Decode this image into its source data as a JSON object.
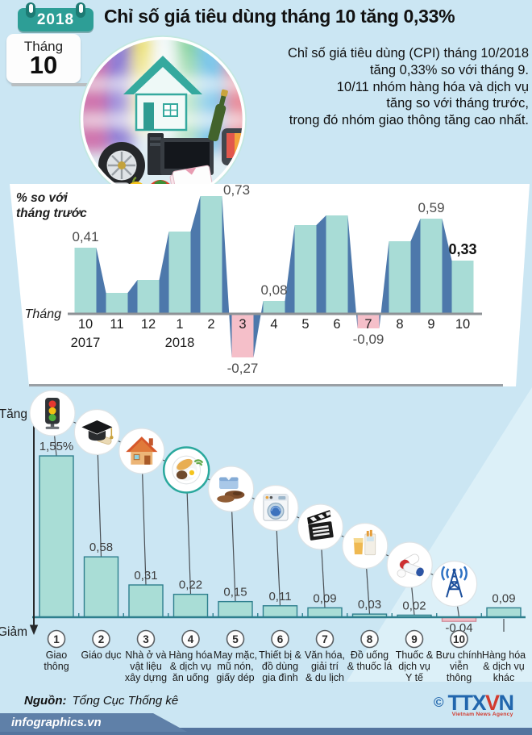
{
  "header": {
    "year_badge": "2018",
    "title": "Chỉ số giá tiêu dùng tháng 10 tăng 0,33%",
    "calendar": {
      "month_label": "Tháng",
      "month_number": "10"
    },
    "intro": "Chỉ số giá tiêu dùng (CPI) tháng 10/2018\ntăng 0,33% so với tháng 9.\n10/11 nhóm hàng hóa và dịch vụ\ntăng so với tháng trước,\ntrong đó nhóm giao thông tăng cao nhất."
  },
  "chart_data": [
    {
      "type": "bar",
      "title": "% so với\ntháng trước",
      "xlabel": "Tháng",
      "categories": [
        "10",
        "11",
        "12",
        "1",
        "2",
        "3",
        "4",
        "5",
        "6",
        "7",
        "8",
        "9",
        "10"
      ],
      "year_marks": [
        {
          "index": 0,
          "label": "2017"
        },
        {
          "index": 3,
          "label": "2018"
        }
      ],
      "values": [
        0.41,
        0.13,
        0.21,
        0.51,
        0.73,
        -0.27,
        0.08,
        0.55,
        0.61,
        -0.09,
        0.45,
        0.59,
        0.33
      ],
      "value_labels": [
        {
          "index": 0,
          "text": "0,41"
        },
        {
          "index": 4,
          "text": "0,73",
          "side": "right"
        },
        {
          "index": 5,
          "text": "-0,27"
        },
        {
          "index": 6,
          "text": "0,08"
        },
        {
          "index": 9,
          "text": "-0,09"
        },
        {
          "index": 11,
          "text": "0,59"
        },
        {
          "index": 12,
          "text": "0,33",
          "bold": true
        }
      ],
      "ylim": [
        -0.3,
        0.8
      ],
      "grid": false,
      "colors": {
        "positive": "#a8dcd6",
        "negative": "#f5bfc9",
        "connector": "#4d78ab",
        "axis": "#8e9296"
      }
    },
    {
      "type": "bar",
      "direction_labels": {
        "up": "Tăng",
        "down": "Giảm"
      },
      "categories": [
        {
          "num": "1",
          "icon": "traffic-light",
          "label_lines": [
            "Giao",
            "thông"
          ],
          "value": 1.55,
          "value_label": "1,55%"
        },
        {
          "num": "2",
          "icon": "graduation-cap",
          "label_lines": [
            "Giáo dục"
          ],
          "value": 0.58,
          "value_label": "0,58"
        },
        {
          "num": "3",
          "icon": "house",
          "label_lines": [
            "Nhà ở và",
            "vật liệu",
            "xây dựng"
          ],
          "value": 0.31,
          "value_label": "0,31"
        },
        {
          "num": "4",
          "icon": "food-plate",
          "label_lines": [
            "Hàng hóa",
            "& dịch vụ",
            "ăn uống"
          ],
          "value": 0.22,
          "value_label": "0,22"
        },
        {
          "num": "5",
          "icon": "clothing-shoes",
          "label_lines": [
            "May mặc,",
            "mũ nón,",
            "giấy dép"
          ],
          "value": 0.15,
          "value_label": "0,15"
        },
        {
          "num": "6",
          "icon": "washing-machine",
          "label_lines": [
            "Thiết bị &",
            "đồ dùng",
            "gia đình"
          ],
          "value": 0.11,
          "value_label": "0,11"
        },
        {
          "num": "7",
          "icon": "clapperboard",
          "label_lines": [
            "Văn hóa,",
            "giải trí",
            "& du lịch"
          ],
          "value": 0.09,
          "value_label": "0,09"
        },
        {
          "num": "8",
          "icon": "drinks-tobacco",
          "label_lines": [
            "Đồ uống",
            "& thuốc lá"
          ],
          "value": 0.03,
          "value_label": "0,03"
        },
        {
          "num": "9",
          "icon": "medicine-pills",
          "label_lines": [
            "Thuốc &",
            "dịch vụ",
            "Y tế"
          ],
          "value": 0.02,
          "value_label": "0,02"
        },
        {
          "num": "10",
          "icon": "telecom-antenna",
          "label_lines": [
            "Bưu chính",
            "viễn",
            "thông"
          ],
          "value": -0.04,
          "value_label": "-0,04"
        },
        {
          "num": null,
          "icon": null,
          "label_lines": [
            "Hàng hóa",
            "& dịch vụ",
            "khác"
          ],
          "value": 0.09,
          "value_label": "0,09"
        }
      ],
      "ylim": [
        -0.1,
        1.6
      ],
      "grid": false,
      "colors": {
        "positive": "#a9ddd6",
        "negative": "#f5c0c9",
        "bar_border": "#2e7f8e",
        "axis": "#2e7f8e",
        "line": "#4a4f54"
      }
    }
  ],
  "hero_icons": [
    "house-icon",
    "tire-icon",
    "computer-tower-icon",
    "monitor-icon",
    "tv-icon",
    "bottle-icon",
    "phone-icon",
    "pill-blister-icon",
    "tomato-icon",
    "pepper-icon",
    "shirt-icon",
    "books-icon"
  ],
  "footer": {
    "source_label": "Nguồn:",
    "source_value": "Tổng Cục Thống kê",
    "website": "infographics.vn",
    "copyright_symbol": "©",
    "agency_part_a": "TTX",
    "agency_part_b": "V",
    "agency_part_c": "N",
    "agency_subtitle": "Vietnam News Agency"
  }
}
